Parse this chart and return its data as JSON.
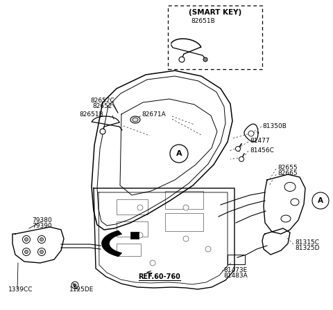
{
  "background_color": "#ffffff",
  "labels": {
    "smart_key_box_title": "(SMART KEY)",
    "smart_key_part": "82651B",
    "82652C": "82652C",
    "82652": "82652",
    "82651B_lbl": "82651B",
    "82671A": "82671A",
    "81350B": "81350B",
    "81477": "81477",
    "81456C": "81456C",
    "82655": "82655",
    "82665": "82665",
    "81315C": "81315C",
    "81325D": "81325D",
    "81473E": "81473E",
    "81483A": "81483A",
    "79380": "79380",
    "79390": "79390",
    "1339CC": "1339CC",
    "1125DE": "1125DE",
    "ref": "REF.60-760",
    "A1": "A",
    "A2": "A"
  }
}
